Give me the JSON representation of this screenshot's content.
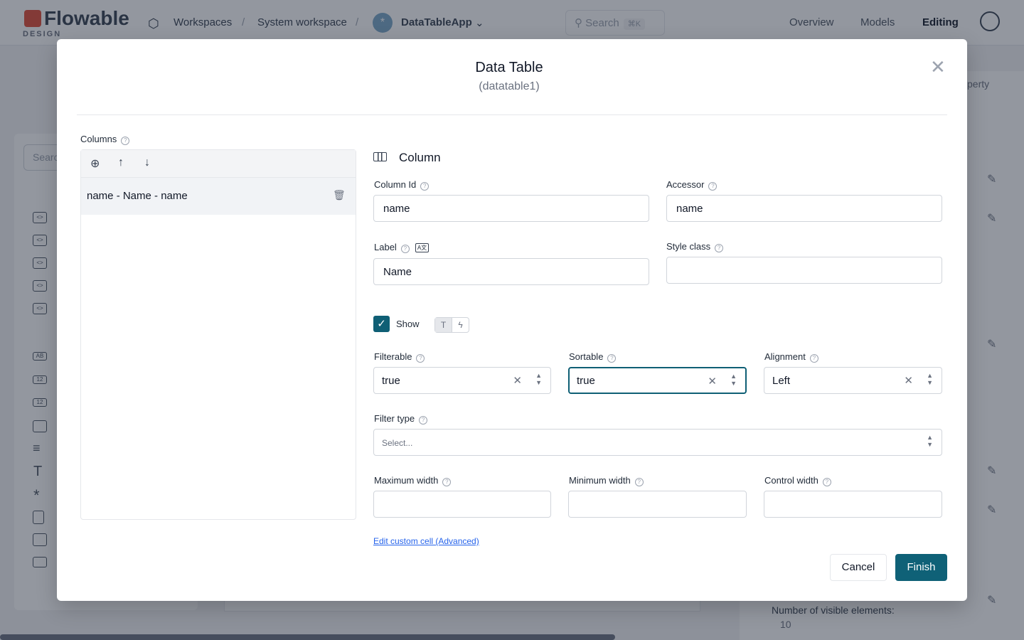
{
  "header": {
    "logo": "Flowable",
    "logo_sub": "DESIGN",
    "breadcrumbs": [
      "Workspaces",
      "System workspace",
      "DataTableApp"
    ],
    "search_placeholder": "Search",
    "search_shortcut": "⌘K",
    "nav": [
      "Overview",
      "Models",
      "Editing"
    ]
  },
  "background": {
    "palette_search": "Searc",
    "property_search": "perty",
    "visible_elements_label": "Number of visible elements:",
    "visible_elements_value": "10"
  },
  "modal": {
    "title": "Data Table",
    "subtitle": "(datatable1)",
    "columns_label": "Columns",
    "columns": [
      {
        "label": "name - Name - name"
      }
    ],
    "section_title": "Column",
    "fields": {
      "column_id": {
        "label": "Column Id",
        "value": "name"
      },
      "accessor": {
        "label": "Accessor",
        "value": "name"
      },
      "label": {
        "label": "Label",
        "value": "Name"
      },
      "style_class": {
        "label": "Style class",
        "value": ""
      },
      "show": {
        "label": "Show",
        "checked": true
      },
      "filterable": {
        "label": "Filterable",
        "value": "true"
      },
      "sortable": {
        "label": "Sortable",
        "value": "true"
      },
      "alignment": {
        "label": "Alignment",
        "value": "Left"
      },
      "filter_type": {
        "label": "Filter type",
        "placeholder": "Select..."
      },
      "max_width": {
        "label": "Maximum width",
        "value": ""
      },
      "min_width": {
        "label": "Minimum width",
        "value": ""
      },
      "control_width": {
        "label": "Control width",
        "value": ""
      }
    },
    "custom_cell_link": "Edit custom cell (Advanced)",
    "cancel_label": "Cancel",
    "finish_label": "Finish"
  },
  "colors": {
    "primary": "#0f6177",
    "link": "#2563eb"
  }
}
